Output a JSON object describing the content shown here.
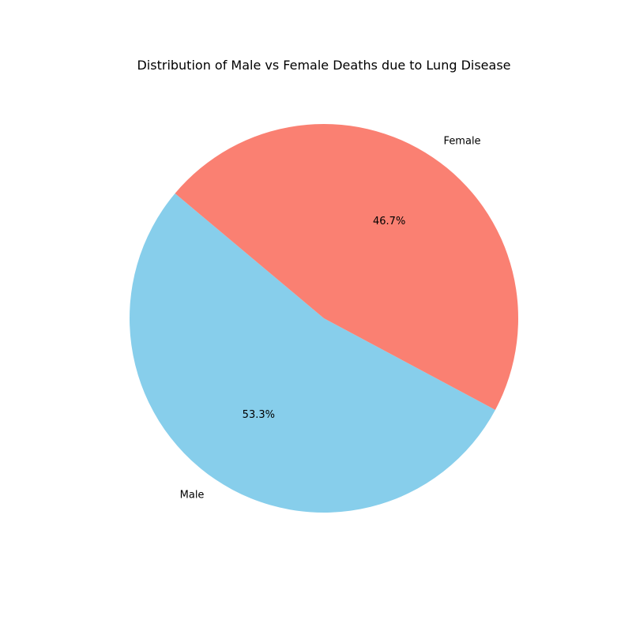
{
  "chart_data": {
    "type": "pie",
    "title": "Distribution of Male vs Female Deaths due to Lung Disease",
    "slices": [
      {
        "label": "Male",
        "value": 53.3,
        "pct_label": "53.3%",
        "color": "#87CEEB"
      },
      {
        "label": "Female",
        "value": 46.7,
        "pct_label": "46.7%",
        "color": "#FA8072"
      }
    ],
    "start_angle_deg": 140,
    "direction": "counterclockwise",
    "legend": "none"
  }
}
